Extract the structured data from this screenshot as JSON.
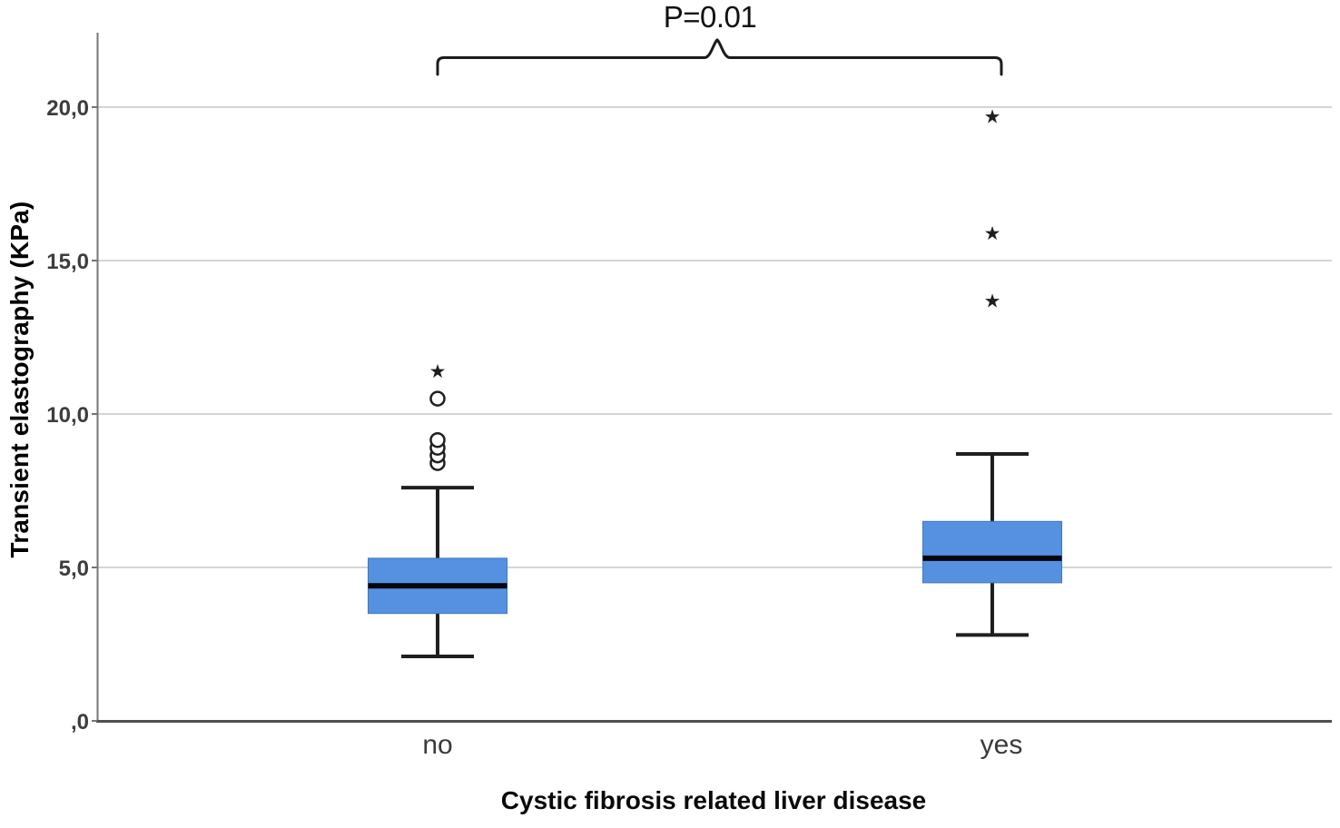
{
  "figure": {
    "p_label": "P=0.01",
    "x_axis_title": "Cystic fibrosis related liver disease",
    "y_axis_title": "Transient elastography (KPa)"
  },
  "icons": {
    "extreme_outlier_star": "★"
  },
  "chart_data": {
    "type": "box",
    "title": "",
    "xlabel": "Cystic fibrosis related liver disease",
    "ylabel": "Transient elastography (KPa)",
    "ylim": [
      0,
      22.3
    ],
    "grid": true,
    "legend": "none",
    "decimal_style": "comma",
    "yticks": [
      {
        "value": 0,
        "label": ",0"
      },
      {
        "value": 5,
        "label": "5,0"
      },
      {
        "value": 10,
        "label": "10,0"
      },
      {
        "value": 15,
        "label": "15,0"
      },
      {
        "value": 20,
        "label": "20,0"
      }
    ],
    "categories": [
      "no",
      "yes"
    ],
    "annotation": {
      "text": "P=0.01",
      "between": [
        "no",
        "yes"
      ]
    },
    "series": [
      {
        "category": "no",
        "whisker_low": 2.1,
        "q1": 3.5,
        "median": 4.4,
        "q3": 5.3,
        "whisker_high": 7.6,
        "outliers_circle": [
          8.4,
          8.65,
          8.9,
          9.15,
          10.5
        ],
        "outliers_star": [
          11.4
        ]
      },
      {
        "category": "yes",
        "whisker_low": 2.8,
        "q1": 4.5,
        "median": 5.3,
        "q3": 6.5,
        "whisker_high": 8.7,
        "outliers_circle": [],
        "outliers_star": [
          13.7,
          15.9,
          19.7
        ]
      }
    ],
    "colors": {
      "box_fill": "#5591E0",
      "box_border": "#4077BD",
      "median": "#06060e",
      "whisker": "#1f1f1f",
      "outlier": "#1f1f1f",
      "gridline": "#d5d5d5",
      "y_axis": "#757575",
      "x_axis": "#4f4f4f",
      "tick_label": "#3d3d3d",
      "category_label": "#3a3a3a",
      "bracket": "#1c1c1c"
    }
  }
}
